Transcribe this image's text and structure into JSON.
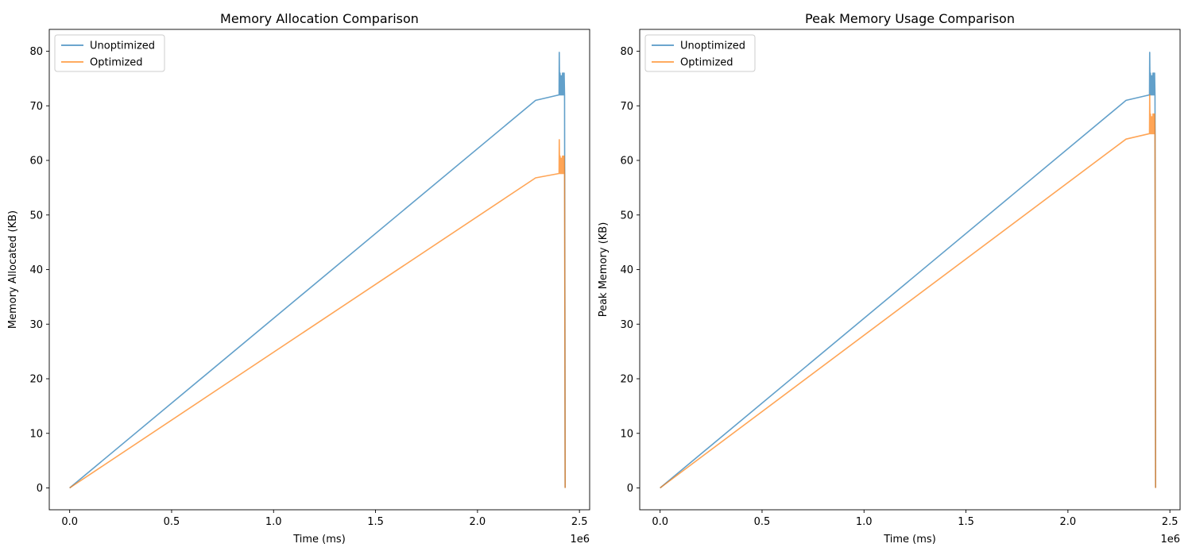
{
  "colors": {
    "unoptimized": "#1f77b4",
    "optimized": "#ff7f0e"
  },
  "chart_data": [
    {
      "type": "line",
      "title": "Memory Allocation Comparison",
      "xlabel": "Time (ms)",
      "ylabel": "Memory Allocated (KB)",
      "x_offset_text": "1e6",
      "xlim": [
        -0.1,
        2.55
      ],
      "ylim": [
        -4,
        84
      ],
      "xticks": [
        0.0,
        0.5,
        1.0,
        1.5,
        2.0,
        2.5
      ],
      "xtick_labels": [
        "0.0",
        "0.5",
        "1.0",
        "1.5",
        "2.0",
        "2.5"
      ],
      "yticks": [
        0,
        10,
        20,
        30,
        40,
        50,
        60,
        70,
        80
      ],
      "ytick_labels": [
        "0",
        "10",
        "20",
        "30",
        "40",
        "50",
        "60",
        "70",
        "80"
      ],
      "grid": false,
      "legend": "top-left",
      "series": [
        {
          "name": "Unoptimized",
          "color": "unoptimized",
          "x": [
            0.0,
            2.285,
            2.4,
            2.401,
            2.403,
            2.405,
            2.407,
            2.409,
            2.411,
            2.413,
            2.415,
            2.417,
            2.419,
            2.421,
            2.423,
            2.425,
            2.427,
            2.43
          ],
          "y": [
            0,
            71.0,
            72.0,
            79.8,
            72.0,
            76.0,
            72.0,
            75.5,
            72.0,
            75.5,
            72.0,
            76.0,
            72.0,
            76.0,
            72.0,
            76.0,
            72.0,
            0
          ]
        },
        {
          "name": "Optimized",
          "color": "optimized",
          "x": [
            0.0,
            2.285,
            2.4,
            2.401,
            2.403,
            2.405,
            2.407,
            2.409,
            2.411,
            2.413,
            2.415,
            2.417,
            2.419,
            2.421,
            2.423,
            2.425,
            2.427,
            2.43
          ],
          "y": [
            0,
            56.8,
            57.6,
            63.8,
            57.6,
            60.8,
            57.6,
            60.4,
            57.6,
            60.4,
            57.6,
            60.8,
            57.6,
            60.8,
            57.6,
            60.8,
            57.6,
            0
          ]
        }
      ]
    },
    {
      "type": "line",
      "title": "Peak Memory Usage Comparison",
      "xlabel": "Time (ms)",
      "ylabel": "Peak Memory (KB)",
      "x_offset_text": "1e6",
      "xlim": [
        -0.1,
        2.55
      ],
      "ylim": [
        -4,
        84
      ],
      "xticks": [
        0.0,
        0.5,
        1.0,
        1.5,
        2.0,
        2.5
      ],
      "xtick_labels": [
        "0.0",
        "0.5",
        "1.0",
        "1.5",
        "2.0",
        "2.5"
      ],
      "yticks": [
        0,
        10,
        20,
        30,
        40,
        50,
        60,
        70,
        80
      ],
      "ytick_labels": [
        "0",
        "10",
        "20",
        "30",
        "40",
        "50",
        "60",
        "70",
        "80"
      ],
      "grid": false,
      "legend": "top-left",
      "series": [
        {
          "name": "Unoptimized",
          "color": "unoptimized",
          "x": [
            0.0,
            2.285,
            2.4,
            2.401,
            2.403,
            2.405,
            2.407,
            2.409,
            2.411,
            2.413,
            2.415,
            2.417,
            2.419,
            2.421,
            2.423,
            2.425,
            2.427,
            2.43
          ],
          "y": [
            0,
            71.0,
            72.0,
            79.8,
            72.0,
            76.0,
            72.0,
            75.5,
            72.0,
            75.5,
            72.0,
            76.0,
            72.0,
            76.0,
            72.0,
            76.0,
            72.0,
            0
          ]
        },
        {
          "name": "Optimized",
          "color": "optimized",
          "x": [
            0.0,
            2.285,
            2.4,
            2.401,
            2.403,
            2.405,
            2.407,
            2.409,
            2.411,
            2.413,
            2.415,
            2.417,
            2.419,
            2.421,
            2.423,
            2.425,
            2.427,
            2.43
          ],
          "y": [
            0,
            63.9,
            64.9,
            72.0,
            64.9,
            68.5,
            64.9,
            68.0,
            64.9,
            68.0,
            64.9,
            68.5,
            64.9,
            68.5,
            64.9,
            68.5,
            64.9,
            0
          ]
        }
      ]
    }
  ]
}
